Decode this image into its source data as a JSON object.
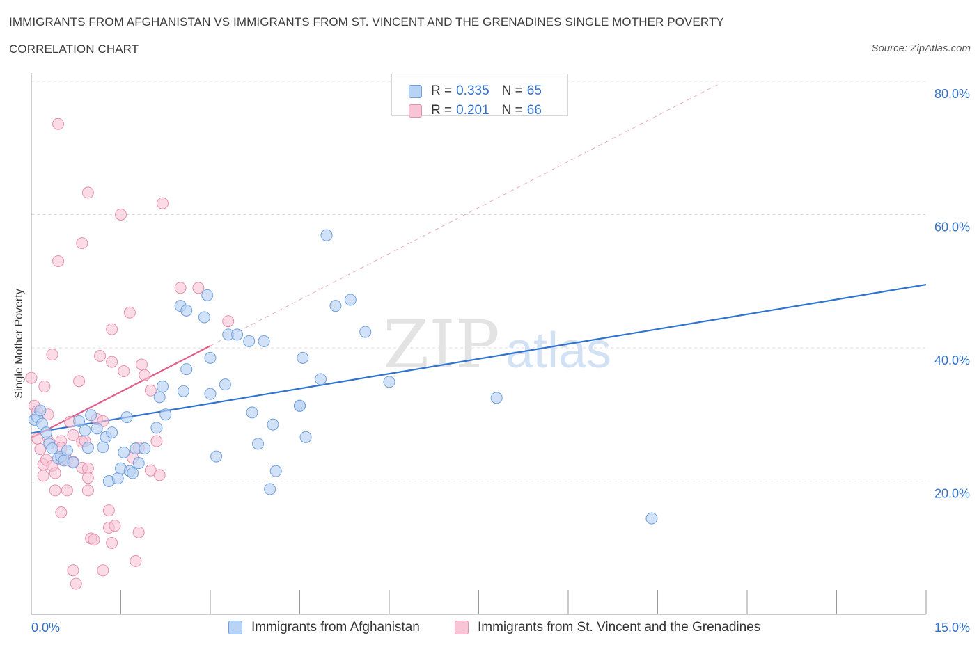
{
  "header": {
    "title_line1": "IMMIGRANTS FROM AFGHANISTAN VS IMMIGRANTS FROM ST. VINCENT AND THE GRENADINES SINGLE MOTHER POVERTY",
    "title_line2": "CORRELATION CHART",
    "source": "Source: ZipAtlas.com"
  },
  "watermark": {
    "zip": "ZIP",
    "atlas": "atlas"
  },
  "stats": [
    {
      "r_label": "R =",
      "r_value": "0.335",
      "n_label": "N =",
      "n_value": "65"
    },
    {
      "r_label": "R =",
      "r_value": "0.201",
      "n_label": "N =",
      "n_value": "66"
    }
  ],
  "colors": {
    "afghanistan_fill": "#b9d3f5",
    "afghanistan_stroke": "#6f9fdc",
    "afghanistan_line": "#2f72cf",
    "stvincent_fill": "#f8c5d6",
    "stvincent_stroke": "#e68fad",
    "stvincent_line": "#e05c8a",
    "axis_text": "#3370c8",
    "grid": "#dcdcdc"
  },
  "chart_data": {
    "type": "scatter",
    "title": "IMMIGRANTS FROM AFGHANISTAN VS IMMIGRANTS FROM ST. VINCENT AND THE GRENADINES SINGLE MOTHER POVERTY CORRELATION CHART",
    "xlabel": "",
    "ylabel": "Single Mother Poverty",
    "xlim": [
      0,
      15
    ],
    "ylim": [
      0,
      80
    ],
    "x_tick_labels": [
      "0.0%",
      "15.0%"
    ],
    "y_tick_labels": [
      "20.0%",
      "40.0%",
      "60.0%",
      "80.0%"
    ],
    "y_ticks": [
      20,
      40,
      60,
      80
    ],
    "grid": true,
    "legend_position": "bottom",
    "series": [
      {
        "name": "Immigrants from Afghanistan",
        "r": 0.335,
        "n": 65,
        "trend": {
          "x": [
            0,
            15
          ],
          "y": [
            27.2,
            49.5
          ],
          "style": "solid"
        },
        "points": [
          [
            0.05,
            29.2
          ],
          [
            0.1,
            29.6
          ],
          [
            0.15,
            30.6
          ],
          [
            0.18,
            28.6
          ],
          [
            0.25,
            27.3
          ],
          [
            0.3,
            25.6
          ],
          [
            0.35,
            24.9
          ],
          [
            0.45,
            23.4
          ],
          [
            0.5,
            23.7
          ],
          [
            0.55,
            23.1
          ],
          [
            0.6,
            24.6
          ],
          [
            0.7,
            22.8
          ],
          [
            0.8,
            29.0
          ],
          [
            0.9,
            27.6
          ],
          [
            0.95,
            25.0
          ],
          [
            1.0,
            29.9
          ],
          [
            1.1,
            27.9
          ],
          [
            1.2,
            25.1
          ],
          [
            1.25,
            26.6
          ],
          [
            1.3,
            20.0
          ],
          [
            1.35,
            27.3
          ],
          [
            1.45,
            20.4
          ],
          [
            1.5,
            21.9
          ],
          [
            1.55,
            24.3
          ],
          [
            1.6,
            29.6
          ],
          [
            1.65,
            21.5
          ],
          [
            1.7,
            21.2
          ],
          [
            1.75,
            24.9
          ],
          [
            1.8,
            22.7
          ],
          [
            1.9,
            24.9
          ],
          [
            2.1,
            28.0
          ],
          [
            2.15,
            32.6
          ],
          [
            2.2,
            34.2
          ],
          [
            2.25,
            30.0
          ],
          [
            2.5,
            46.3
          ],
          [
            2.6,
            45.6
          ],
          [
            2.55,
            33.5
          ],
          [
            2.6,
            36.8
          ],
          [
            2.9,
            44.6
          ],
          [
            2.95,
            47.9
          ],
          [
            3.0,
            38.5
          ],
          [
            3.1,
            23.7
          ],
          [
            3.0,
            33.1
          ],
          [
            3.25,
            34.5
          ],
          [
            3.3,
            42.0
          ],
          [
            3.45,
            42.0
          ],
          [
            3.65,
            41.0
          ],
          [
            3.7,
            30.3
          ],
          [
            3.8,
            25.6
          ],
          [
            3.9,
            41.0
          ],
          [
            4.0,
            18.8
          ],
          [
            4.05,
            28.5
          ],
          [
            4.1,
            21.5
          ],
          [
            4.5,
            31.3
          ],
          [
            4.5,
            31.3
          ],
          [
            4.55,
            38.5
          ],
          [
            4.6,
            26.6
          ],
          [
            4.85,
            35.3
          ],
          [
            4.95,
            56.9
          ],
          [
            5.1,
            46.3
          ],
          [
            5.35,
            47.2
          ],
          [
            5.6,
            42.4
          ],
          [
            6.0,
            34.9
          ],
          [
            7.8,
            32.5
          ],
          [
            10.4,
            14.4
          ]
        ]
      },
      {
        "name": "Immigrants from St. Vincent and the Grenadines",
        "r": 0.201,
        "n": 66,
        "trend": {
          "x": [
            0,
            3.0
          ],
          "y": [
            26.5,
            40.3
          ],
          "extended_x": [
            3.0,
            11.5
          ],
          "extended_y": [
            40.3,
            79.5
          ],
          "extended_style": "dashed"
        },
        "points": [
          [
            0.0,
            35.5
          ],
          [
            0.05,
            31.3
          ],
          [
            0.1,
            30.5
          ],
          [
            0.1,
            26.4
          ],
          [
            0.15,
            24.8
          ],
          [
            0.2,
            22.5
          ],
          [
            0.2,
            20.8
          ],
          [
            0.22,
            34.2
          ],
          [
            0.25,
            23.2
          ],
          [
            0.28,
            30.0
          ],
          [
            0.3,
            25.9
          ],
          [
            0.35,
            39.0
          ],
          [
            0.35,
            22.3
          ],
          [
            0.4,
            21.2
          ],
          [
            0.4,
            18.6
          ],
          [
            0.45,
            73.6
          ],
          [
            0.45,
            53.0
          ],
          [
            0.5,
            26.0
          ],
          [
            0.5,
            25.0
          ],
          [
            0.5,
            23.2
          ],
          [
            0.5,
            15.3
          ],
          [
            0.6,
            23.2
          ],
          [
            0.6,
            18.6
          ],
          [
            0.65,
            28.9
          ],
          [
            0.7,
            26.9
          ],
          [
            0.7,
            22.9
          ],
          [
            0.7,
            6.6
          ],
          [
            0.75,
            4.6
          ],
          [
            0.8,
            35.0
          ],
          [
            0.85,
            55.7
          ],
          [
            0.85,
            25.9
          ],
          [
            0.85,
            22.0
          ],
          [
            0.9,
            26.0
          ],
          [
            0.95,
            63.3
          ],
          [
            0.95,
            21.9
          ],
          [
            0.95,
            20.5
          ],
          [
            0.95,
            18.6
          ],
          [
            1.0,
            11.4
          ],
          [
            1.05,
            11.2
          ],
          [
            1.1,
            29.3
          ],
          [
            1.15,
            38.8
          ],
          [
            1.2,
            29.0
          ],
          [
            1.2,
            6.6
          ],
          [
            1.3,
            13.0
          ],
          [
            1.3,
            15.6
          ],
          [
            1.35,
            42.8
          ],
          [
            1.35,
            37.9
          ],
          [
            1.35,
            10.7
          ],
          [
            1.4,
            13.3
          ],
          [
            1.5,
            60.0
          ],
          [
            1.55,
            36.5
          ],
          [
            1.65,
            45.3
          ],
          [
            1.7,
            23.5
          ],
          [
            1.75,
            8.0
          ],
          [
            1.8,
            25.0
          ],
          [
            1.8,
            12.3
          ],
          [
            1.85,
            37.5
          ],
          [
            1.9,
            35.9
          ],
          [
            2.0,
            33.6
          ],
          [
            2.0,
            21.6
          ],
          [
            2.1,
            26.0
          ],
          [
            2.15,
            20.9
          ],
          [
            2.2,
            61.7
          ],
          [
            2.5,
            49.0
          ],
          [
            2.8,
            49.0
          ],
          [
            3.3,
            44.0
          ]
        ]
      }
    ]
  }
}
